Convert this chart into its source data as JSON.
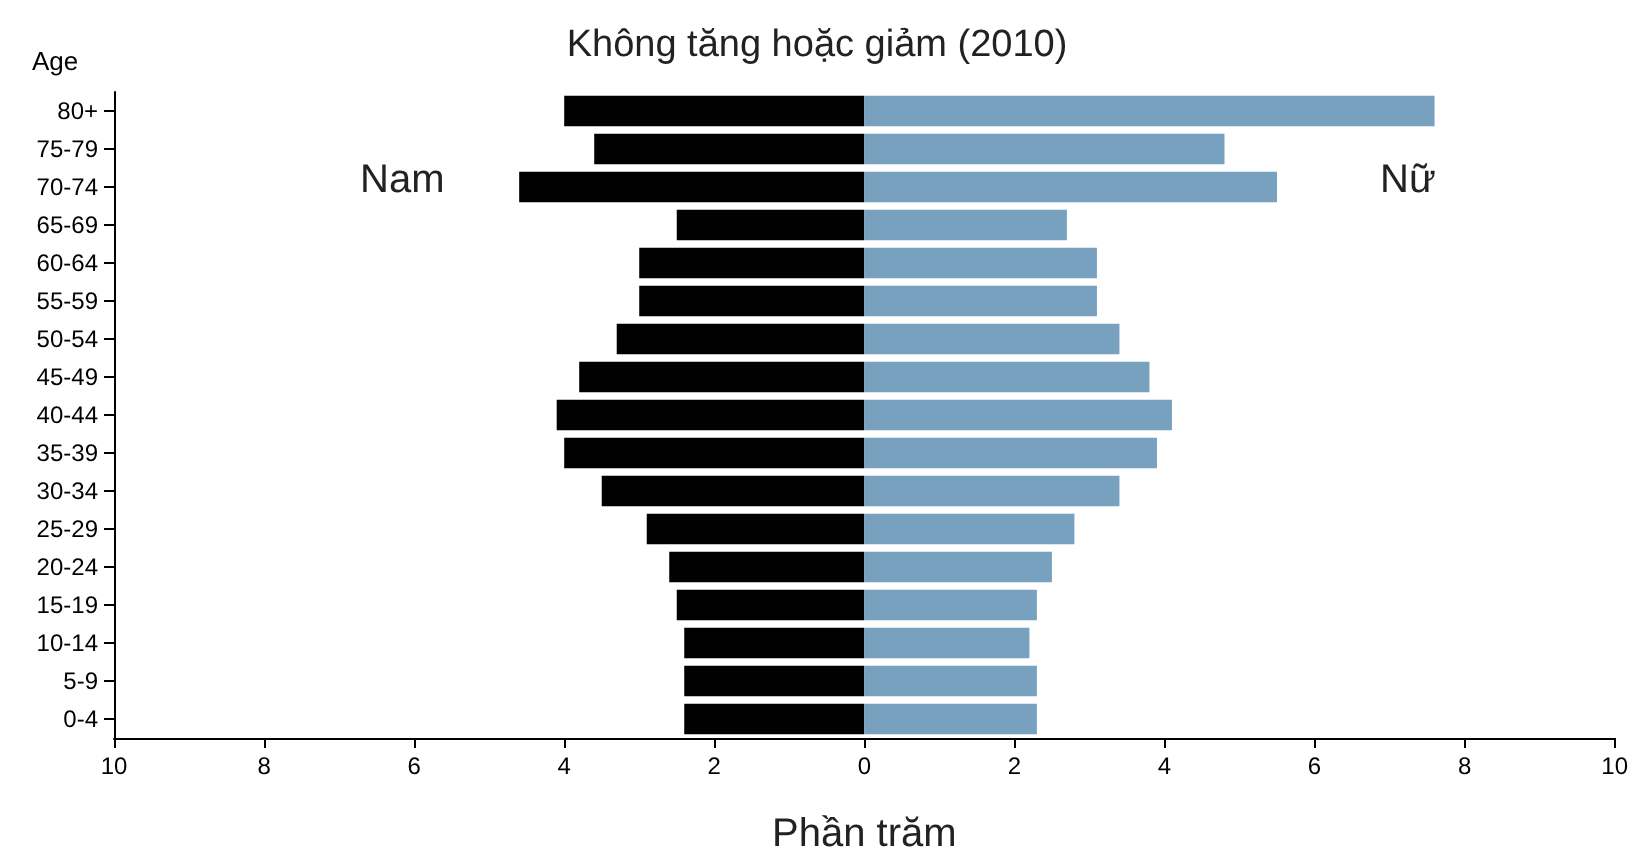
{
  "chart_data": {
    "type": "bar",
    "orientation": "horizontal",
    "title": "Không tăng hoặc giảm (2010)",
    "xlabel": "Phần trăm",
    "ylabel": "Age",
    "categories": [
      "80+",
      "75-79",
      "70-74",
      "65-69",
      "60-64",
      "55-59",
      "50-54",
      "45-49",
      "40-44",
      "35-39",
      "30-34",
      "25-29",
      "20-24",
      "15-19",
      "10-14",
      "5-9",
      "0-4"
    ],
    "series": [
      {
        "name": "Nam",
        "color": "#000000",
        "values": [
          -4.0,
          -3.6,
          -4.6,
          -2.5,
          -3.0,
          -3.0,
          -3.3,
          -3.8,
          -4.1,
          -4.0,
          -3.5,
          -2.9,
          -2.6,
          -2.5,
          -2.4,
          -2.4,
          -2.4
        ]
      },
      {
        "name": "Nữ",
        "color": "#77a1be",
        "values": [
          7.6,
          4.8,
          5.5,
          2.7,
          3.1,
          3.1,
          3.4,
          3.8,
          4.1,
          3.9,
          3.4,
          2.8,
          2.5,
          2.3,
          2.2,
          2.3,
          2.3
        ]
      }
    ],
    "xlim": [
      -10,
      10
    ],
    "xticks": [
      {
        "value": -10,
        "label": "10"
      },
      {
        "value": -8,
        "label": "8"
      },
      {
        "value": -6,
        "label": "6"
      },
      {
        "value": -4,
        "label": "4"
      },
      {
        "value": -2,
        "label": "2"
      },
      0,
      2,
      4,
      6,
      8,
      10
    ],
    "stacked": true,
    "grid": false,
    "legend": false
  }
}
